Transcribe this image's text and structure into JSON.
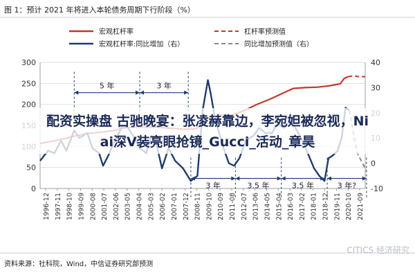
{
  "figure_title": "图 1：预计 2021 年将进入本轮债务周期下行阶段（%）",
  "overlay_text": {
    "line1": "配资实操盘 古驰晚宴：张凌赫靠边，李宛妲被忽视，Ni",
    "line2": "ai深V装亮眼抢镜_Gucci_活动_章昊"
  },
  "source_note": "资料来源：社科院，Wind，中信证券研究部预测",
  "watermark": "CITICS 经济研究",
  "colors": {
    "leverage": "#c0392b",
    "yoy": "#1f3b6f",
    "arrow": "#1f3b6f",
    "title": "#222222",
    "grid": "#d0d0d0"
  },
  "chart_data": {
    "type": "line",
    "legend": {
      "placement": "top",
      "entries": [
        "宏观杠杆率",
        "杠杆率预测值",
        "宏观杠杆率:同比增加（右）",
        "同比增加预测值（右）"
      ]
    },
    "y_left": {
      "range": [
        0,
        300
      ],
      "ticks": [
        "0",
        "50",
        "100",
        "150",
        "200",
        "250",
        "300"
      ]
    },
    "y_right": {
      "range": [
        -10,
        40
      ],
      "ticks": [
        "-10",
        "0",
        "10",
        "20",
        "30",
        "40"
      ]
    },
    "x_ticks": [
      "1996-12",
      "1997-11",
      "1998-10",
      "1999-09",
      "2000-08",
      "2001-07",
      "2002-06",
      "2003-05",
      "2004-04",
      "2005-03",
      "2006-02",
      "2007-01",
      "2007-12",
      "2008-11",
      "2009-10",
      "2010-09",
      "2011-08",
      "2012-07",
      "2013-06",
      "2014-05",
      "2015-04",
      "2016-03",
      "2017-02",
      "2018-01",
      "2018-12",
      "2019-11",
      "2020-10",
      "2021-09"
    ],
    "grid": true,
    "series": [
      {
        "name": "宏观杠杆率",
        "axis": "left",
        "x": [
          1996.9,
          1997.9,
          1998.8,
          1999.7,
          2000.6,
          2001.6,
          2002.5,
          2003.4,
          2004.3,
          2005.2,
          2006.1,
          2007.0,
          2007.9,
          2008.8,
          2009.8,
          2010.7,
          2011.6,
          2012.5,
          2013.5,
          2014.4,
          2015.3,
          2016.2,
          2017.1,
          2018.0,
          2018.9,
          2019.8,
          2020.1,
          2020.4
        ],
        "y": [
          107,
          113,
          119,
          126,
          131,
          134,
          138,
          145,
          146,
          146,
          145,
          143,
          141,
          142,
          170,
          174,
          175,
          186,
          201,
          212,
          225,
          238,
          240,
          241,
          244,
          249,
          262,
          266
        ]
      },
      {
        "name": "杠杆率预测值",
        "axis": "left",
        "x": [
          2020.4,
          2020.8,
          2021.2,
          2021.7
        ],
        "y": [
          266,
          268,
          266,
          266
        ]
      },
      {
        "name": "宏观杠杆率:同比增加（右）",
        "axis": "right",
        "x": [
          1996.9,
          1997.5,
          1998.0,
          1998.5,
          1998.9,
          1999.5,
          1999.9,
          2000.5,
          2000.9,
          2001.4,
          2001.7,
          2002.1,
          2002.6,
          2003.2,
          2003.6,
          2004.0,
          2004.5,
          2005.0,
          2005.4,
          2005.8,
          2006.2,
          2006.7,
          2007.2,
          2007.8,
          2008.4,
          2008.9,
          2009.3,
          2009.7,
          2009.9,
          2010.2,
          2010.5,
          2010.9,
          2011.3,
          2011.7,
          2012.1,
          2012.6,
          2013.2,
          2013.6,
          2014.1,
          2014.6,
          2015.0,
          2015.5,
          2016.0,
          2016.5,
          2017.0,
          2017.4,
          2017.8,
          2018.2,
          2018.6,
          2018.9,
          2019.2,
          2019.6,
          2019.9,
          2020.2,
          2020.5
        ],
        "y": [
          1,
          5,
          4,
          9,
          5,
          13,
          10,
          12,
          6,
          4,
          -1,
          3,
          9,
          15,
          14,
          11,
          6,
          4,
          11,
          7,
          -2,
          6,
          1,
          -2,
          -7,
          -5,
          21,
          33,
          28,
          19,
          13,
          6,
          0,
          -1,
          2,
          9,
          11,
          14,
          12,
          12,
          16,
          14,
          17,
          13,
          8,
          3,
          -2,
          -5,
          -7,
          2,
          3,
          5,
          10,
          22,
          21
        ]
      },
      {
        "name": "同比增加预测值（右）",
        "axis": "right",
        "x": [
          2020.5,
          2020.8,
          2021.1,
          2021.5,
          2021.8
        ],
        "y": [
          21,
          12,
          4,
          0,
          -3
        ]
      }
    ],
    "annotations": [
      {
        "text": "5 年",
        "x_from": 1999.5,
        "x_to": 2004.5,
        "level": 28
      },
      {
        "text": "3 年",
        "x_from": 2004.5,
        "x_to": 2008.2,
        "level": 28
      },
      {
        "text": "3 年",
        "x_from": 2008.4,
        "x_to": 2011.8,
        "level": -6
      },
      {
        "text": "3.5 年",
        "x_from": 2011.8,
        "x_to": 2015.3,
        "level": -6
      },
      {
        "text": "3.5 年",
        "x_from": 2015.3,
        "x_to": 2018.6,
        "level": -6
      },
      {
        "text": "3 年?",
        "x_from": 2018.8,
        "x_to": 2021.8,
        "level": -6
      }
    ]
  }
}
